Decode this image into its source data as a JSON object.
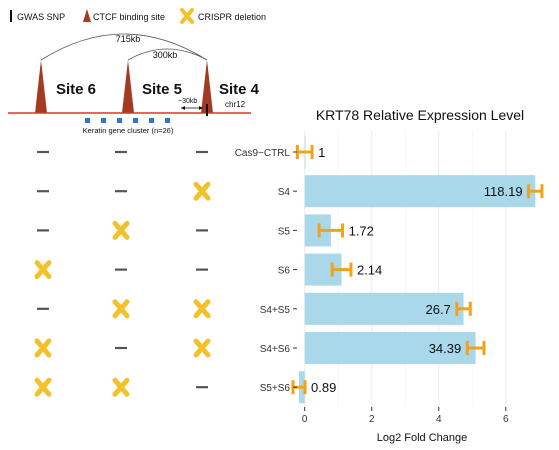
{
  "legend": {
    "gwas_snp": "GWAS SNP",
    "ctcf": "CTCF binding site",
    "crispr": "CRISPR deletion"
  },
  "locus": {
    "site6": "Site 6",
    "site5": "Site 5",
    "site4": "Site 4",
    "span_715": "715kb",
    "span_300": "300kb",
    "span_30": "~30kb",
    "chr": "chr12",
    "cluster": "Keratin gene cluster (n=26)"
  },
  "deletion_matrix": {
    "rows": [
      [
        "-",
        "-",
        "-"
      ],
      [
        "-",
        "-",
        "X"
      ],
      [
        "-",
        "X",
        "-"
      ],
      [
        "X",
        "-",
        "-"
      ],
      [
        "-",
        "X",
        "X"
      ],
      [
        "X",
        "-",
        "X"
      ],
      [
        "X",
        "X",
        "-"
      ]
    ]
  },
  "colors": {
    "bar": "#a8d8ea",
    "error": "#f0a21c",
    "cross": "#f3c12a",
    "peak": "#a33a24",
    "chrom_line": "#d9362b",
    "cluster": "#2f78c4",
    "dash": "#555555"
  },
  "chart_data": {
    "type": "bar",
    "orientation": "horizontal",
    "title": "KRT78 Relative Expression Level",
    "xlabel": "Log2 Fold Change",
    "ylabel": "",
    "xlim": [
      -0.2,
      7.2
    ],
    "xticks": [
      0,
      2,
      4,
      6
    ],
    "grid": true,
    "categories": [
      "Cas9−CTRL",
      "S4",
      "S5",
      "S6",
      "S4+S5",
      "S4+S6",
      "S5+S6"
    ],
    "values": [
      0,
      6.88,
      0.78,
      1.1,
      4.74,
      5.1,
      -0.17
    ],
    "errors": [
      0.22,
      0.2,
      0.35,
      0.28,
      0.2,
      0.25,
      0.18
    ],
    "labels": [
      "1",
      "118.19",
      "1.72",
      "2.14",
      "26.7",
      "34.39",
      "0.89"
    ]
  }
}
